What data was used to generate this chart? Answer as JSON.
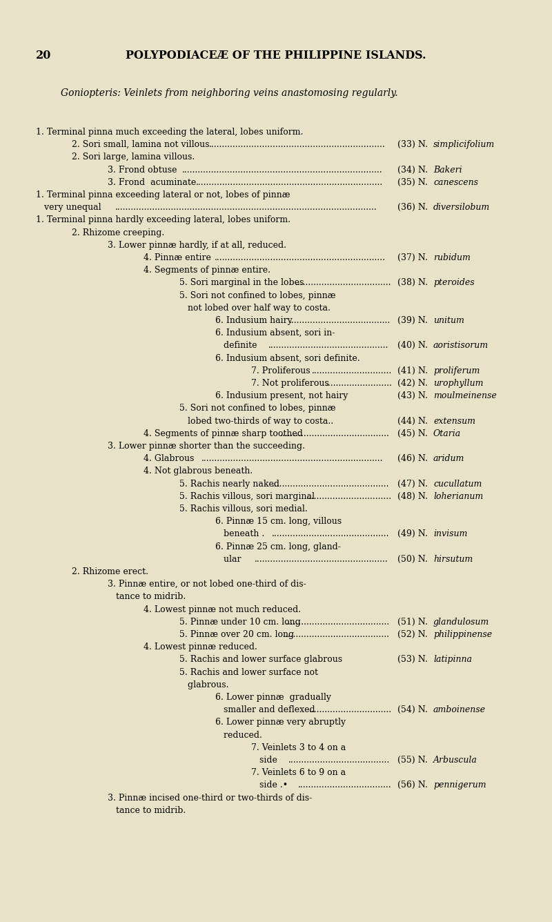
{
  "bg_color": "#e8e3c8",
  "page_number": "20",
  "header": "POLYPODIACEÆ OF THE PHILIPPINE ISLANDS.",
  "subtitle": "Goniopteris: Veinlets from neighboring veins anastomosing regularly.",
  "lines": [
    {
      "indent": 0,
      "text": "1. Terminal pinna much exceeding the lateral, lobes uniform.",
      "num": "",
      "name": "",
      "dots": false
    },
    {
      "indent": 1,
      "text": "2. Sori small, lamina not villous",
      "num": "(33) N.",
      "name": "simplicifolium",
      "dots": true
    },
    {
      "indent": 1,
      "text": "2. Sori large, lamina villous.",
      "num": "",
      "name": "",
      "dots": false
    },
    {
      "indent": 2,
      "text": "3. Frond obtuse",
      "num": "(34) N.",
      "name": "Bakeri",
      "dots": true
    },
    {
      "indent": 2,
      "text": "3. Frond  acuminate",
      "num": "(35) N.",
      "name": "canescens",
      "dots": true
    },
    {
      "indent": 0,
      "text": "1. Terminal pinna exceeding lateral or not, lobes of pinnæ",
      "num": "",
      "name": "",
      "dots": false
    },
    {
      "indent": 0,
      "text": "   very unequal",
      "num": "(36) N.",
      "name": "diversilobum",
      "dots": true
    },
    {
      "indent": 0,
      "text": "1. Terminal pinna hardly exceeding lateral, lobes uniform.",
      "num": "",
      "name": "",
      "dots": false
    },
    {
      "indent": 1,
      "text": "2. Rhizome creeping.",
      "num": "",
      "name": "",
      "dots": false
    },
    {
      "indent": 2,
      "text": "3. Lower pinnæ hardly, if at all, reduced.",
      "num": "",
      "name": "",
      "dots": false
    },
    {
      "indent": 3,
      "text": "4. Pinnæ entire",
      "num": "(37) N.",
      "name": "rubidum",
      "dots": true
    },
    {
      "indent": 3,
      "text": "4. Segments of pinnæ entire.",
      "num": "",
      "name": "",
      "dots": false
    },
    {
      "indent": 4,
      "text": "5. Sori marginal in the lobes",
      "num": "(38) N.",
      "name": "pteroides",
      "dots": true
    },
    {
      "indent": 4,
      "text": "5. Sori not confined to lobes, pinnæ",
      "num": "",
      "name": "",
      "dots": false
    },
    {
      "indent": 4,
      "text": "   not lobed over half way to costa.",
      "num": "",
      "name": "",
      "dots": false
    },
    {
      "indent": 5,
      "text": "6. Indusium hairy",
      "num": "(39) N.",
      "name": "unitum",
      "dots": true
    },
    {
      "indent": 5,
      "text": "6. Indusium absent, sori in-",
      "num": "",
      "name": "",
      "dots": false
    },
    {
      "indent": 5,
      "text": "   definite",
      "num": "(40) N.",
      "name": "aoristisorum",
      "dots": true
    },
    {
      "indent": 5,
      "text": "6. Indusium absent, sori definite.",
      "num": "",
      "name": "",
      "dots": false
    },
    {
      "indent": 6,
      "text": "7. Proliferous",
      "num": "(41) N.",
      "name": "proliferum",
      "dots": true
    },
    {
      "indent": 6,
      "text": "7. Not proliferous",
      "num": "(42) N.",
      "name": "urophyllum",
      "dots": true
    },
    {
      "indent": 5,
      "text": "6. Indusium present, not hairy",
      "num": "(43) N.",
      "name": "moulmeinense",
      "dots": false
    },
    {
      "indent": 4,
      "text": "5. Sori not confined to lobes, pinnæ",
      "num": "",
      "name": "",
      "dots": false
    },
    {
      "indent": 4,
      "text": "   lobed two-thirds of way to costa..",
      "num": "(44) N.",
      "name": "extensum",
      "dots": false
    },
    {
      "indent": 3,
      "text": "4. Segments of pinnæ sharp toothed",
      "num": "(45) N.",
      "name": "Otaria",
      "dots": true
    },
    {
      "indent": 2,
      "text": "3. Lower pinnæ shorter than the succeeding.",
      "num": "",
      "name": "",
      "dots": false
    },
    {
      "indent": 3,
      "text": "4. Glabrous",
      "num": "(46) N.",
      "name": "aridum",
      "dots": true
    },
    {
      "indent": 3,
      "text": "4. Not glabrous beneath.",
      "num": "",
      "name": "",
      "dots": false
    },
    {
      "indent": 4,
      "text": "5. Rachis nearly naked",
      "num": "(47) N.",
      "name": "cucullatum",
      "dots": true
    },
    {
      "indent": 4,
      "text": "5. Rachis villous, sori marginal",
      "num": "(48) N.",
      "name": "loherianum",
      "dots": true
    },
    {
      "indent": 4,
      "text": "5. Rachis villous, sori medial.",
      "num": "",
      "name": "",
      "dots": false
    },
    {
      "indent": 5,
      "text": "6. Pinnæ 15 cm. long, villous",
      "num": "",
      "name": "",
      "dots": false
    },
    {
      "indent": 5,
      "text": "   beneath .",
      "num": "(49) N.",
      "name": "invisum",
      "dots": true
    },
    {
      "indent": 5,
      "text": "6. Pinnæ 25 cm. long, gland-",
      "num": "",
      "name": "",
      "dots": false
    },
    {
      "indent": 5,
      "text": "   ular",
      "num": "(50) N.",
      "name": "hirsutum",
      "dots": true
    },
    {
      "indent": 1,
      "text": "2. Rhizome erect.",
      "num": "",
      "name": "",
      "dots": false
    },
    {
      "indent": 2,
      "text": "3. Pinnæ entire, or not lobed one-third of dis-",
      "num": "",
      "name": "",
      "dots": false
    },
    {
      "indent": 2,
      "text": "   tance to midrib.",
      "num": "",
      "name": "",
      "dots": false
    },
    {
      "indent": 3,
      "text": "4. Lowest pinnæ not much reduced.",
      "num": "",
      "name": "",
      "dots": false
    },
    {
      "indent": 4,
      "text": "5. Pinnæ under 10 cm. long",
      "num": "(51) N.",
      "name": "glandulosum",
      "dots": true
    },
    {
      "indent": 4,
      "text": "5. Pinnæ over 20 cm. long",
      "num": "(52) N.",
      "name": "philippinense",
      "dots": true
    },
    {
      "indent": 3,
      "text": "4. Lowest pinnæ reduced.",
      "num": "",
      "name": "",
      "dots": false
    },
    {
      "indent": 4,
      "text": "5. Rachis and lower surface glabrous",
      "num": "(53) N.",
      "name": "latipinna",
      "dots": false
    },
    {
      "indent": 4,
      "text": "5. Rachis and lower surface not",
      "num": "",
      "name": "",
      "dots": false
    },
    {
      "indent": 4,
      "text": "   glabrous.",
      "num": "",
      "name": "",
      "dots": false
    },
    {
      "indent": 5,
      "text": "6. Lower pinnæ  gradually",
      "num": "",
      "name": "",
      "dots": false
    },
    {
      "indent": 5,
      "text": "   smaller and deflexed",
      "num": "(54) N.",
      "name": "amboinense",
      "dots": true
    },
    {
      "indent": 5,
      "text": "6. Lower pinnæ very abruptly",
      "num": "",
      "name": "",
      "dots": false
    },
    {
      "indent": 5,
      "text": "   reduced.",
      "num": "",
      "name": "",
      "dots": false
    },
    {
      "indent": 6,
      "text": "7. Veinlets 3 to 4 on a",
      "num": "",
      "name": "",
      "dots": false
    },
    {
      "indent": 6,
      "text": "   side",
      "num": "(55) N.",
      "name": "Arbuscula",
      "dots": true
    },
    {
      "indent": 6,
      "text": "7. Veinlets 6 to 9 on a",
      "num": "",
      "name": "",
      "dots": false
    },
    {
      "indent": 6,
      "text": "   side .•",
      "num": "(56) N.",
      "name": "pennigerum",
      "dots": true
    },
    {
      "indent": 2,
      "text": "3. Pinnæ incised one-third or two-thirds of dis-",
      "num": "",
      "name": "",
      "dots": false
    },
    {
      "indent": 2,
      "text": "   tance to midrib.",
      "num": "",
      "name": "",
      "dots": false
    }
  ]
}
